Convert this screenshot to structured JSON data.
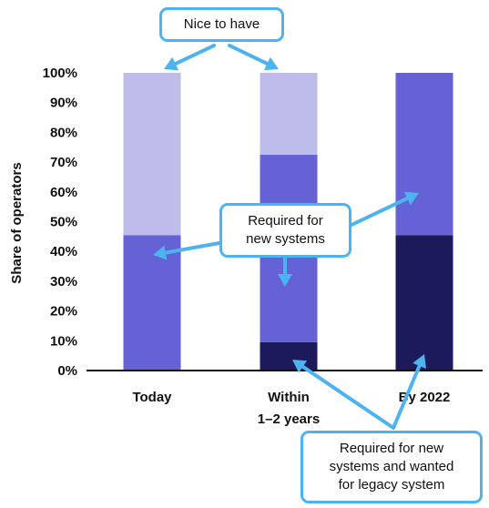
{
  "chart_data": {
    "type": "bar",
    "stacked": true,
    "categories": [
      "Today",
      "Within\n1–2 years",
      "By 2022"
    ],
    "ylabel": "Share of operators",
    "ylim": [
      0,
      100
    ],
    "yticks": [
      "0%",
      "10%",
      "20%",
      "30%",
      "40%",
      "50%",
      "60%",
      "70%",
      "80%",
      "90%",
      "100%"
    ],
    "series": [
      {
        "key": "legacy",
        "values": [
          0,
          9.5,
          45.5
        ],
        "color": "#1c1a5a"
      },
      {
        "key": "new",
        "values": [
          45.5,
          63,
          54.5
        ],
        "color": "#6562d6"
      },
      {
        "key": "nice",
        "values": [
          54.5,
          27.5,
          0
        ],
        "color": "#bdbcea"
      }
    ],
    "annotations": {
      "nice": "Nice to have",
      "required_new": "Required for\nnew systems",
      "required_legacy": "Required for new\nsystems and wanted\nfor legacy system"
    },
    "arrow_color": "#4db3f0"
  }
}
